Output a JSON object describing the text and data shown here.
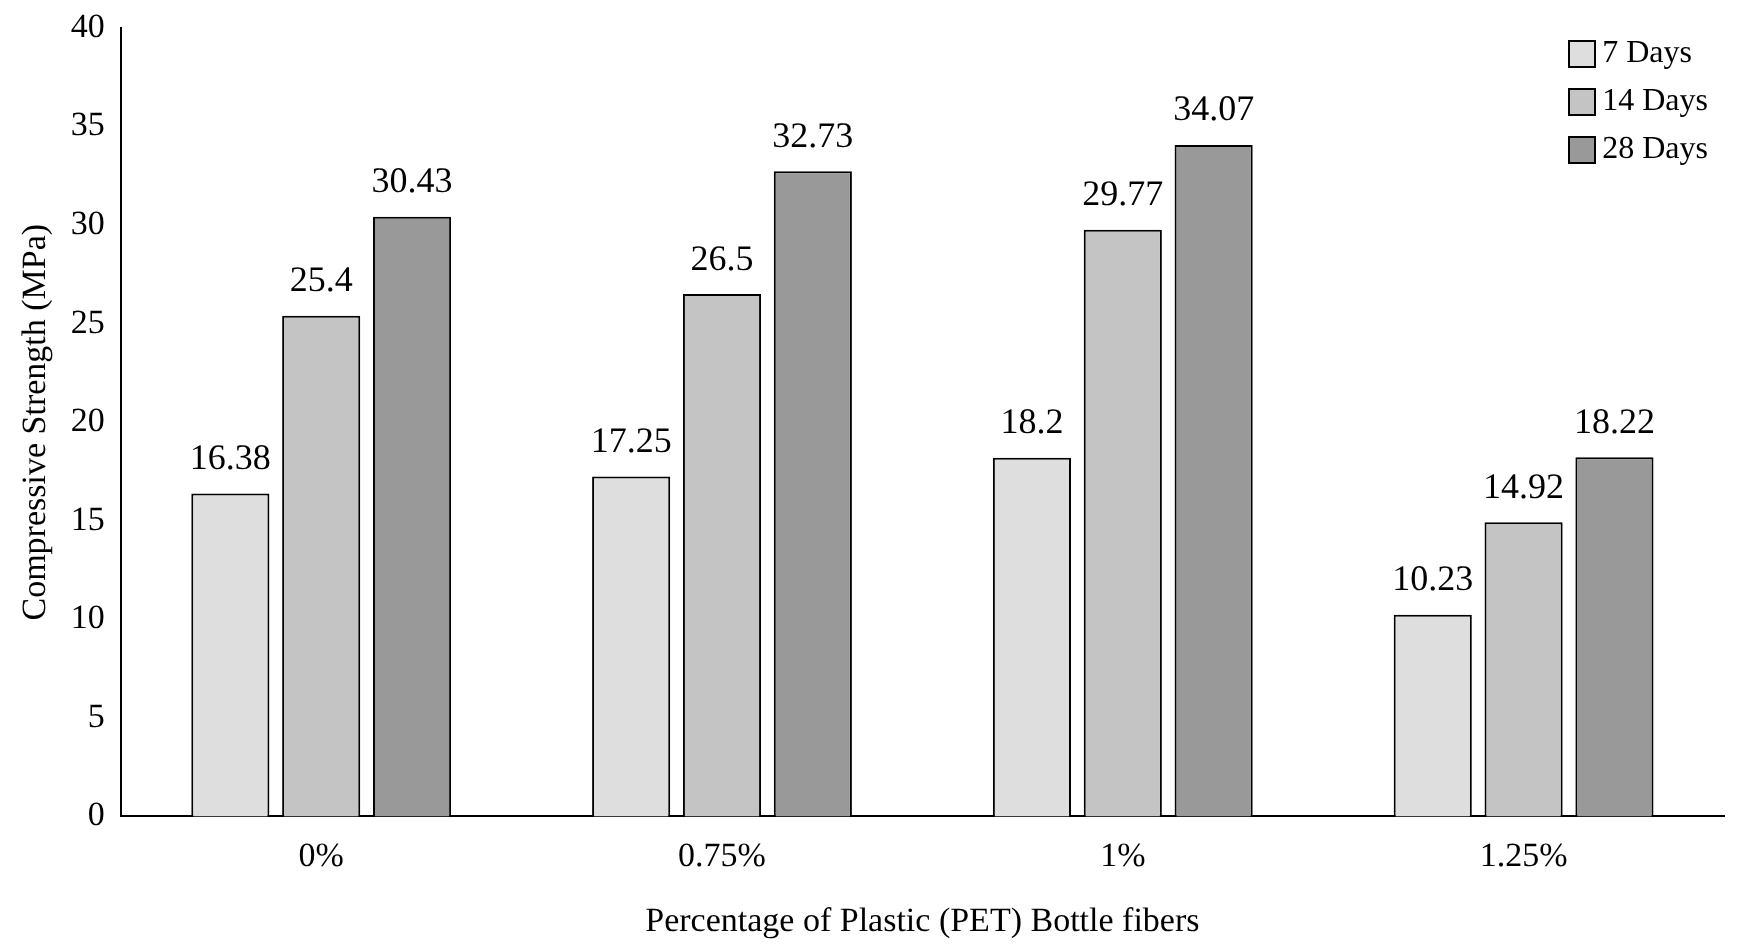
{
  "chart_data": {
    "type": "bar",
    "xlabel": "Percentage of Plastic (PET) Bottle fibers",
    "ylabel": "Compressive Strength (MPa)",
    "categories": [
      "0%",
      "0.75%",
      "1%",
      "1.25%"
    ],
    "series": [
      {
        "name": "7 Days",
        "color": "#dedede",
        "values": [
          16.38,
          17.25,
          18.2,
          10.23
        ]
      },
      {
        "name": "14 Days",
        "color": "#c4c4c4",
        "values": [
          25.4,
          26.5,
          29.77,
          14.92
        ]
      },
      {
        "name": "28 Days",
        "color": "#999999",
        "values": [
          30.43,
          32.73,
          34.07,
          18.22
        ]
      }
    ],
    "ylim": [
      0,
      40
    ],
    "yticks": [
      0,
      5,
      10,
      15,
      20,
      25,
      30,
      35,
      40
    ],
    "grid": false,
    "legend": "top right",
    "data_labels": true
  }
}
